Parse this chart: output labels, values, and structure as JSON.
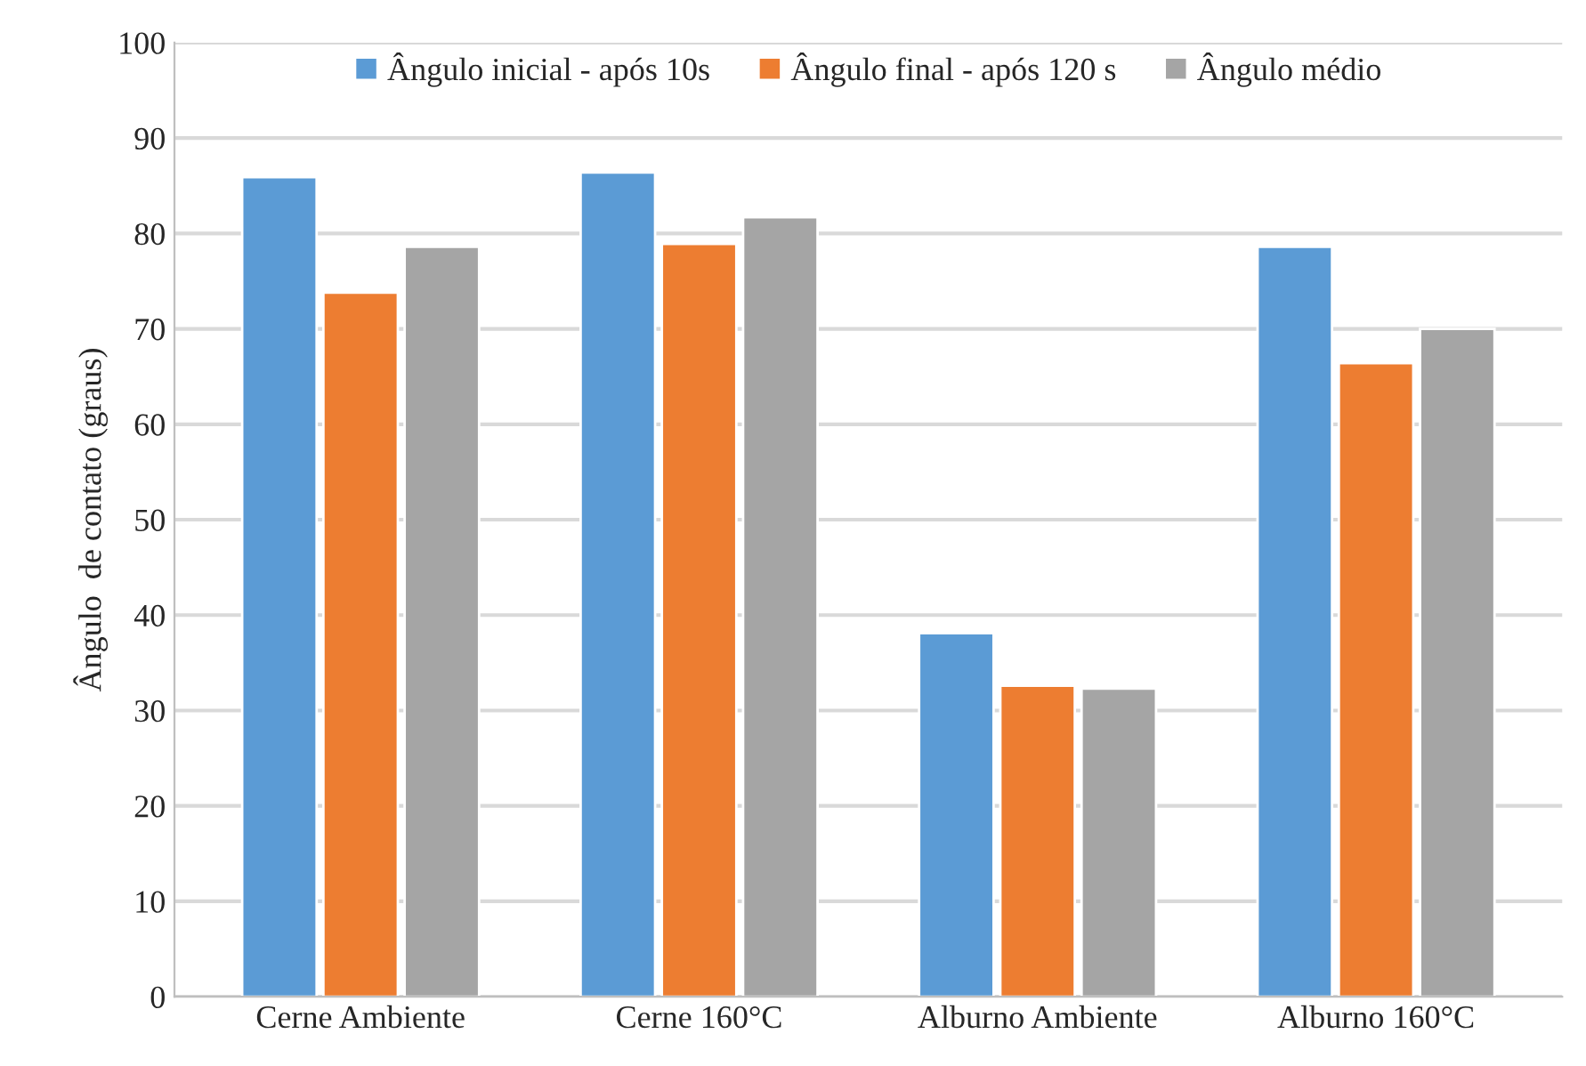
{
  "chart_data": {
    "type": "bar",
    "ylabel": "Ângulo  de contato (graus)",
    "categories": [
      "Cerne Ambiente",
      "Cerne 160°C",
      "Alburno Ambiente",
      "Alburno 160°C"
    ],
    "series": [
      {
        "name": "Ângulo inicial - após 10s",
        "color": "#5b9bd5",
        "values": [
          85.9,
          86.4,
          38.1,
          78.6
        ]
      },
      {
        "name": "Ângulo final - após 120 s",
        "color": "#ed7d31",
        "values": [
          73.8,
          78.9,
          32.6,
          66.4
        ]
      },
      {
        "name": "Ângulo médio",
        "color": "#a5a5a5",
        "values": [
          78.6,
          81.7,
          32.3,
          70.0
        ]
      }
    ],
    "ylim": [
      0,
      100
    ],
    "yticks": [
      0,
      10,
      20,
      30,
      40,
      50,
      60,
      70,
      80,
      90,
      100
    ],
    "grid": "y",
    "legend": "top"
  }
}
